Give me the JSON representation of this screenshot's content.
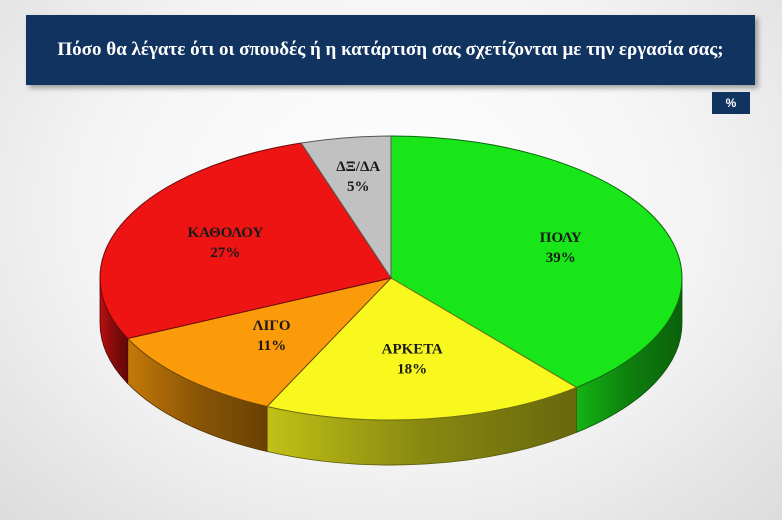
{
  "header": {
    "title": "Πόσο θα λέγατε ότι οι σπουδές ή η κατάρτιση σας σχετίζονται με την εργασία σας;",
    "unit_badge": "%"
  },
  "chart_data": {
    "type": "pie",
    "title": "Πόσο θα λέγατε ότι οι σπουδές ή η κατάρτιση σας σχετίζονται με την εργασία σας;",
    "unit": "%",
    "slices": [
      {
        "label": "ΠΟΛΥ",
        "value": 39,
        "value_label": "39%",
        "color": "#19e619"
      },
      {
        "label": "ΑΡΚΕΤΑ",
        "value": 18,
        "value_label": "18%",
        "color": "#f8f81e"
      },
      {
        "label": "ΛΙΓΟ",
        "value": 11,
        "value_label": "11%",
        "color": "#fb9b0a"
      },
      {
        "label": "ΚΑΘΟΛΟΥ",
        "value": 27,
        "value_label": "27%",
        "color": "#ef1414"
      },
      {
        "label": "ΔΞ/ΔΑ",
        "value": 5,
        "value_label": "5%",
        "color": "#c1c1c1"
      }
    ]
  }
}
